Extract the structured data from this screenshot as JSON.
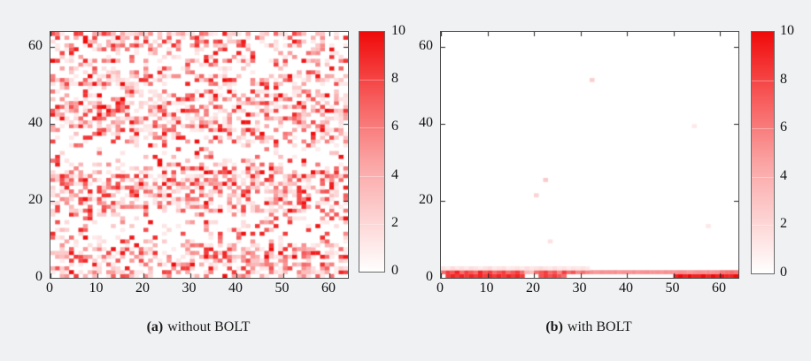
{
  "colors": {
    "heat_high": "#f00a0a",
    "heat_low": "#ffffff",
    "plot_border": "#4a4a4a",
    "page_bg": "#f0f1f3",
    "tick_color": "#222222"
  },
  "chart_data": [
    {
      "type": "heatmap",
      "caption_label": "(a)",
      "caption_text": "without BOLT",
      "grid": [
        64,
        64
      ],
      "value_range": [
        0,
        10
      ],
      "x_ticks": [
        0,
        10,
        20,
        30,
        40,
        50,
        60
      ],
      "y_ticks": [
        0,
        20,
        40,
        60
      ],
      "colorbar_ticks": [
        0,
        2,
        4,
        6,
        8,
        10
      ],
      "colormap": {
        "low": "#ffffff",
        "high": "#f00a0a"
      },
      "pattern": {
        "kind": "seeded-random-row-banded-noise",
        "seed": 42,
        "description": "dense random speckle over full grid with horizontal density banding; sparse bands near rows 10-16, 30-34, 53-55; dense bands near rows 0-8, 17-27, 35-47, 56-63",
        "row_density": [
          0.5,
          0.55,
          0.5,
          0.55,
          0.6,
          0.6,
          0.55,
          0.6,
          0.45,
          0.3,
          0.18,
          0.15,
          0.2,
          0.15,
          0.2,
          0.25,
          0.3,
          0.45,
          0.5,
          0.55,
          0.6,
          0.65,
          0.6,
          0.65,
          0.6,
          0.65,
          0.6,
          0.55,
          0.4,
          0.35,
          0.22,
          0.2,
          0.18,
          0.22,
          0.25,
          0.4,
          0.45,
          0.5,
          0.55,
          0.6,
          0.6,
          0.65,
          0.6,
          0.55,
          0.6,
          0.55,
          0.5,
          0.55,
          0.4,
          0.35,
          0.5,
          0.55,
          0.5,
          0.3,
          0.25,
          0.2,
          0.5,
          0.25,
          0.3,
          0.35,
          0.45,
          0.5,
          0.4,
          0.55
        ]
      }
    },
    {
      "type": "heatmap",
      "caption_label": "(b)",
      "caption_text": "with BOLT",
      "grid": [
        64,
        64
      ],
      "value_range": [
        0,
        10
      ],
      "x_ticks": [
        0,
        10,
        20,
        30,
        40,
        50,
        60
      ],
      "y_ticks": [
        0,
        20,
        40,
        60
      ],
      "colorbar_ticks": [
        0,
        2,
        4,
        6,
        8,
        10
      ],
      "colormap": {
        "low": "#ffffff",
        "high": "#f00a0a"
      },
      "rows": {
        "0": [
          0,
          8,
          9,
          8,
          9,
          8,
          9,
          8,
          9,
          8,
          9,
          8,
          9,
          8,
          9,
          8,
          9,
          8,
          0,
          0,
          0,
          7,
          8,
          7,
          8,
          7,
          6,
          0,
          0,
          0,
          0,
          0,
          0,
          0,
          0,
          0,
          0,
          0,
          0,
          0,
          0,
          0,
          0,
          0,
          0,
          0,
          0,
          0,
          0,
          0,
          9,
          10,
          9,
          10,
          9,
          9,
          10,
          9,
          10,
          9,
          10,
          9,
          9,
          10
        ],
        "1": [
          6,
          8,
          7,
          9,
          6,
          8,
          7,
          6,
          9,
          7,
          8,
          6,
          7,
          8,
          6,
          7,
          8,
          6,
          3,
          2.5,
          6,
          7,
          8,
          6,
          7,
          5,
          8,
          6,
          7,
          5,
          6,
          5,
          4.5,
          4.3,
          4.6,
          4.4,
          4.5,
          4.7,
          4.3,
          4.5,
          4.4,
          4.6,
          4.3,
          4.5,
          4.6,
          4.4,
          4.5,
          4.3,
          4.6,
          4.5,
          4.4,
          4.6,
          4.5,
          4.3,
          4.4,
          4.6,
          4.5,
          4.7,
          4.4,
          4.6,
          5.5,
          5.8,
          6,
          5.6
        ],
        "2": [
          1.2,
          0.8,
          1.5,
          1,
          1.3,
          0.9,
          1.4,
          1.1,
          0.8,
          1.2,
          1.5,
          0.9,
          1.1,
          1.3,
          0.8,
          1,
          1.2,
          0.9,
          1.4,
          1,
          1.2,
          1.5,
          1.1,
          0.9,
          1.3,
          1,
          1.2,
          0.8,
          1.1,
          1,
          1.2,
          0.9,
          0,
          0,
          0,
          0,
          0,
          0,
          0,
          0,
          0,
          0,
          0,
          0,
          0,
          0,
          0,
          0,
          0,
          0,
          0,
          0,
          0,
          0,
          0,
          0,
          0,
          0,
          0,
          0,
          0,
          0,
          0,
          0
        ]
      },
      "cells": [
        {
          "x": 20,
          "y": 21,
          "v": 1.8
        },
        {
          "x": 22,
          "y": 25,
          "v": 2.2
        },
        {
          "x": 23,
          "y": 9,
          "v": 1.2
        },
        {
          "x": 57,
          "y": 13,
          "v": 1.0
        },
        {
          "x": 32,
          "y": 51,
          "v": 2.0
        },
        {
          "x": 54,
          "y": 39,
          "v": 0.9
        }
      ]
    }
  ]
}
